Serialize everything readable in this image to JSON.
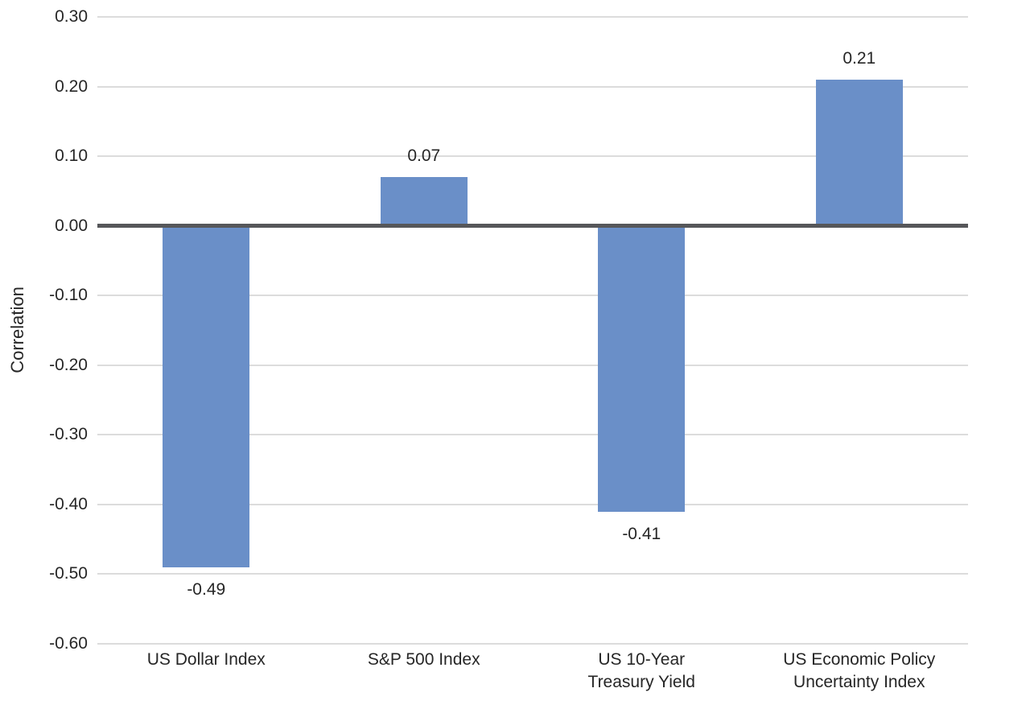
{
  "chart_data": {
    "type": "bar",
    "title": "",
    "xlabel": "",
    "ylabel": "Correlation",
    "ylim": [
      -0.6,
      0.3
    ],
    "ytick_step": 0.1,
    "yticks": [
      0.3,
      0.2,
      0.1,
      0.0,
      -0.1,
      -0.2,
      -0.3,
      -0.4,
      -0.5,
      -0.6
    ],
    "categories": [
      "US Dollar Index",
      "S&P 500 Index",
      "US 10-Year\nTreasury Yield",
      "US Economic Policy\nUncertainty Index"
    ],
    "values": [
      -0.49,
      0.07,
      -0.41,
      0.21
    ],
    "data_labels": [
      "-0.49",
      "0.07",
      "-0.41",
      "0.21"
    ],
    "grid": "horizontal",
    "legend": "none",
    "colors": {
      "bar": "#6A8FC8",
      "zero_line": "#56575A",
      "gridline": "#DCDCDC",
      "text": "#262626",
      "background": "#FFFFFF"
    }
  }
}
